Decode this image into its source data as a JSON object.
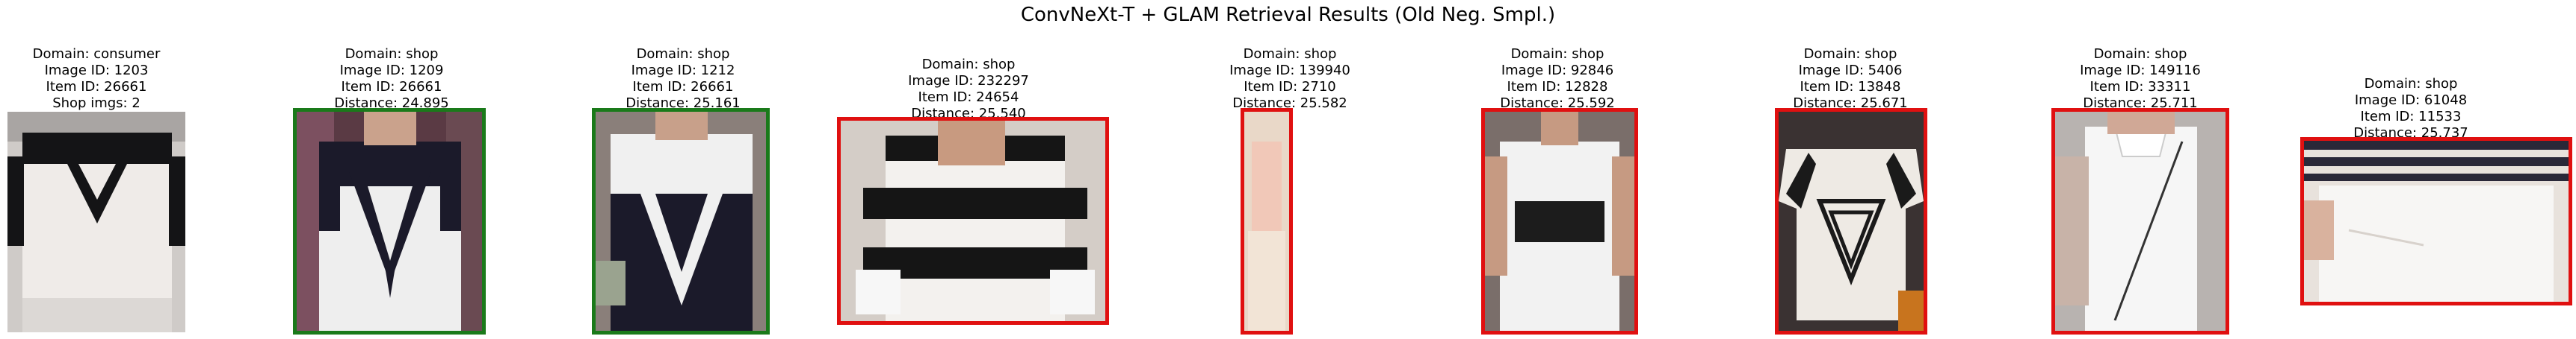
{
  "title": "ConvNeXt-T + GLAM Retrieval Results (Old Neg. Smpl.)",
  "colors": {
    "match": "#1a7a1a",
    "non_match": "#e01010",
    "background": "#ffffff"
  },
  "query": {
    "domain": "Domain: consumer",
    "image_id": "Image ID: 1203",
    "item_id": "Item ID: 26661",
    "shop_imgs": "Shop imgs: 2"
  },
  "results": [
    {
      "domain": "Domain: shop",
      "image_id": "Image ID: 1209",
      "item_id": "Item ID: 26661",
      "distance": "Distance: 24.895",
      "match": true
    },
    {
      "domain": "Domain: shop",
      "image_id": "Image ID: 1212",
      "item_id": "Item ID: 26661",
      "distance": "Distance: 25.161",
      "match": true
    },
    {
      "domain": "Domain: shop",
      "image_id": "Image ID: 232297",
      "item_id": "Item ID: 24654",
      "distance": "Distance: 25.540",
      "match": false
    },
    {
      "domain": "Domain: shop",
      "image_id": "Image ID: 139940",
      "item_id": "Item ID: 2710",
      "distance": "Distance: 25.582",
      "match": false
    },
    {
      "domain": "Domain: shop",
      "image_id": "Image ID: 92846",
      "item_id": "Item ID: 12828",
      "distance": "Distance: 25.592",
      "match": false
    },
    {
      "domain": "Domain: shop",
      "image_id": "Image ID: 5406",
      "item_id": "Item ID: 13848",
      "distance": "Distance: 25.671",
      "match": false
    },
    {
      "domain": "Domain: shop",
      "image_id": "Image ID: 149116",
      "item_id": "Item ID: 33311",
      "distance": "Distance: 25.711",
      "match": false
    },
    {
      "domain": "Domain: shop",
      "image_id": "Image ID: 61048",
      "item_id": "Item ID: 11533",
      "distance": "Distance: 25.737",
      "match": false
    }
  ]
}
